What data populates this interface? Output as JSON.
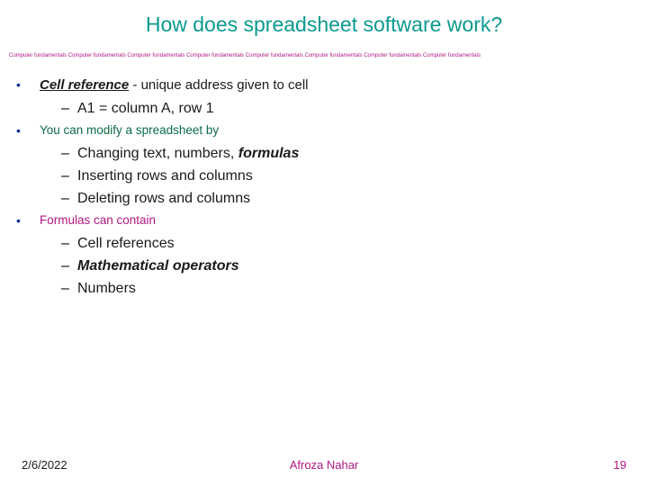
{
  "colors": {
    "title": "#0b9a8f",
    "divider": "#b21882",
    "bullet1_dot": "#0f2f8f",
    "bullet1_text": "#1a1a1a",
    "bullet2_dot": "#0f2f8f",
    "bullet2_text": "#0b6b45",
    "bullet3_dot": "#0f2f8f",
    "bullet3_text": "#b21882",
    "sub_text": "#1a1a1a",
    "date": "#1a1a1a",
    "author": "#b21882",
    "page": "#b21882"
  },
  "title": "How does spreadsheet software work?",
  "divider": "Computer fundamentals Computer fundamentals Computer fundamentals Computer fundamentals Computer fundamentals Computer fundamentals Computer fundamentals Computer fundamentals",
  "b1": {
    "lead": "Cell reference",
    "rest": " - unique address given to cell",
    "sub1": "A1 = column A, row 1"
  },
  "b2": {
    "text": "You can modify a spreadsheet by",
    "sub1_a": "Changing text, numbers, ",
    "sub1_b": "formulas",
    "sub2": "Inserting rows and columns",
    "sub3": "Deleting rows and columns"
  },
  "b3": {
    "text": "Formulas can contain",
    "sub1": "Cell references",
    "sub2": "Mathematical operators",
    "sub3": "Numbers"
  },
  "footer": {
    "date": "2/6/2022",
    "author": "Afroza Nahar",
    "page": "19"
  }
}
